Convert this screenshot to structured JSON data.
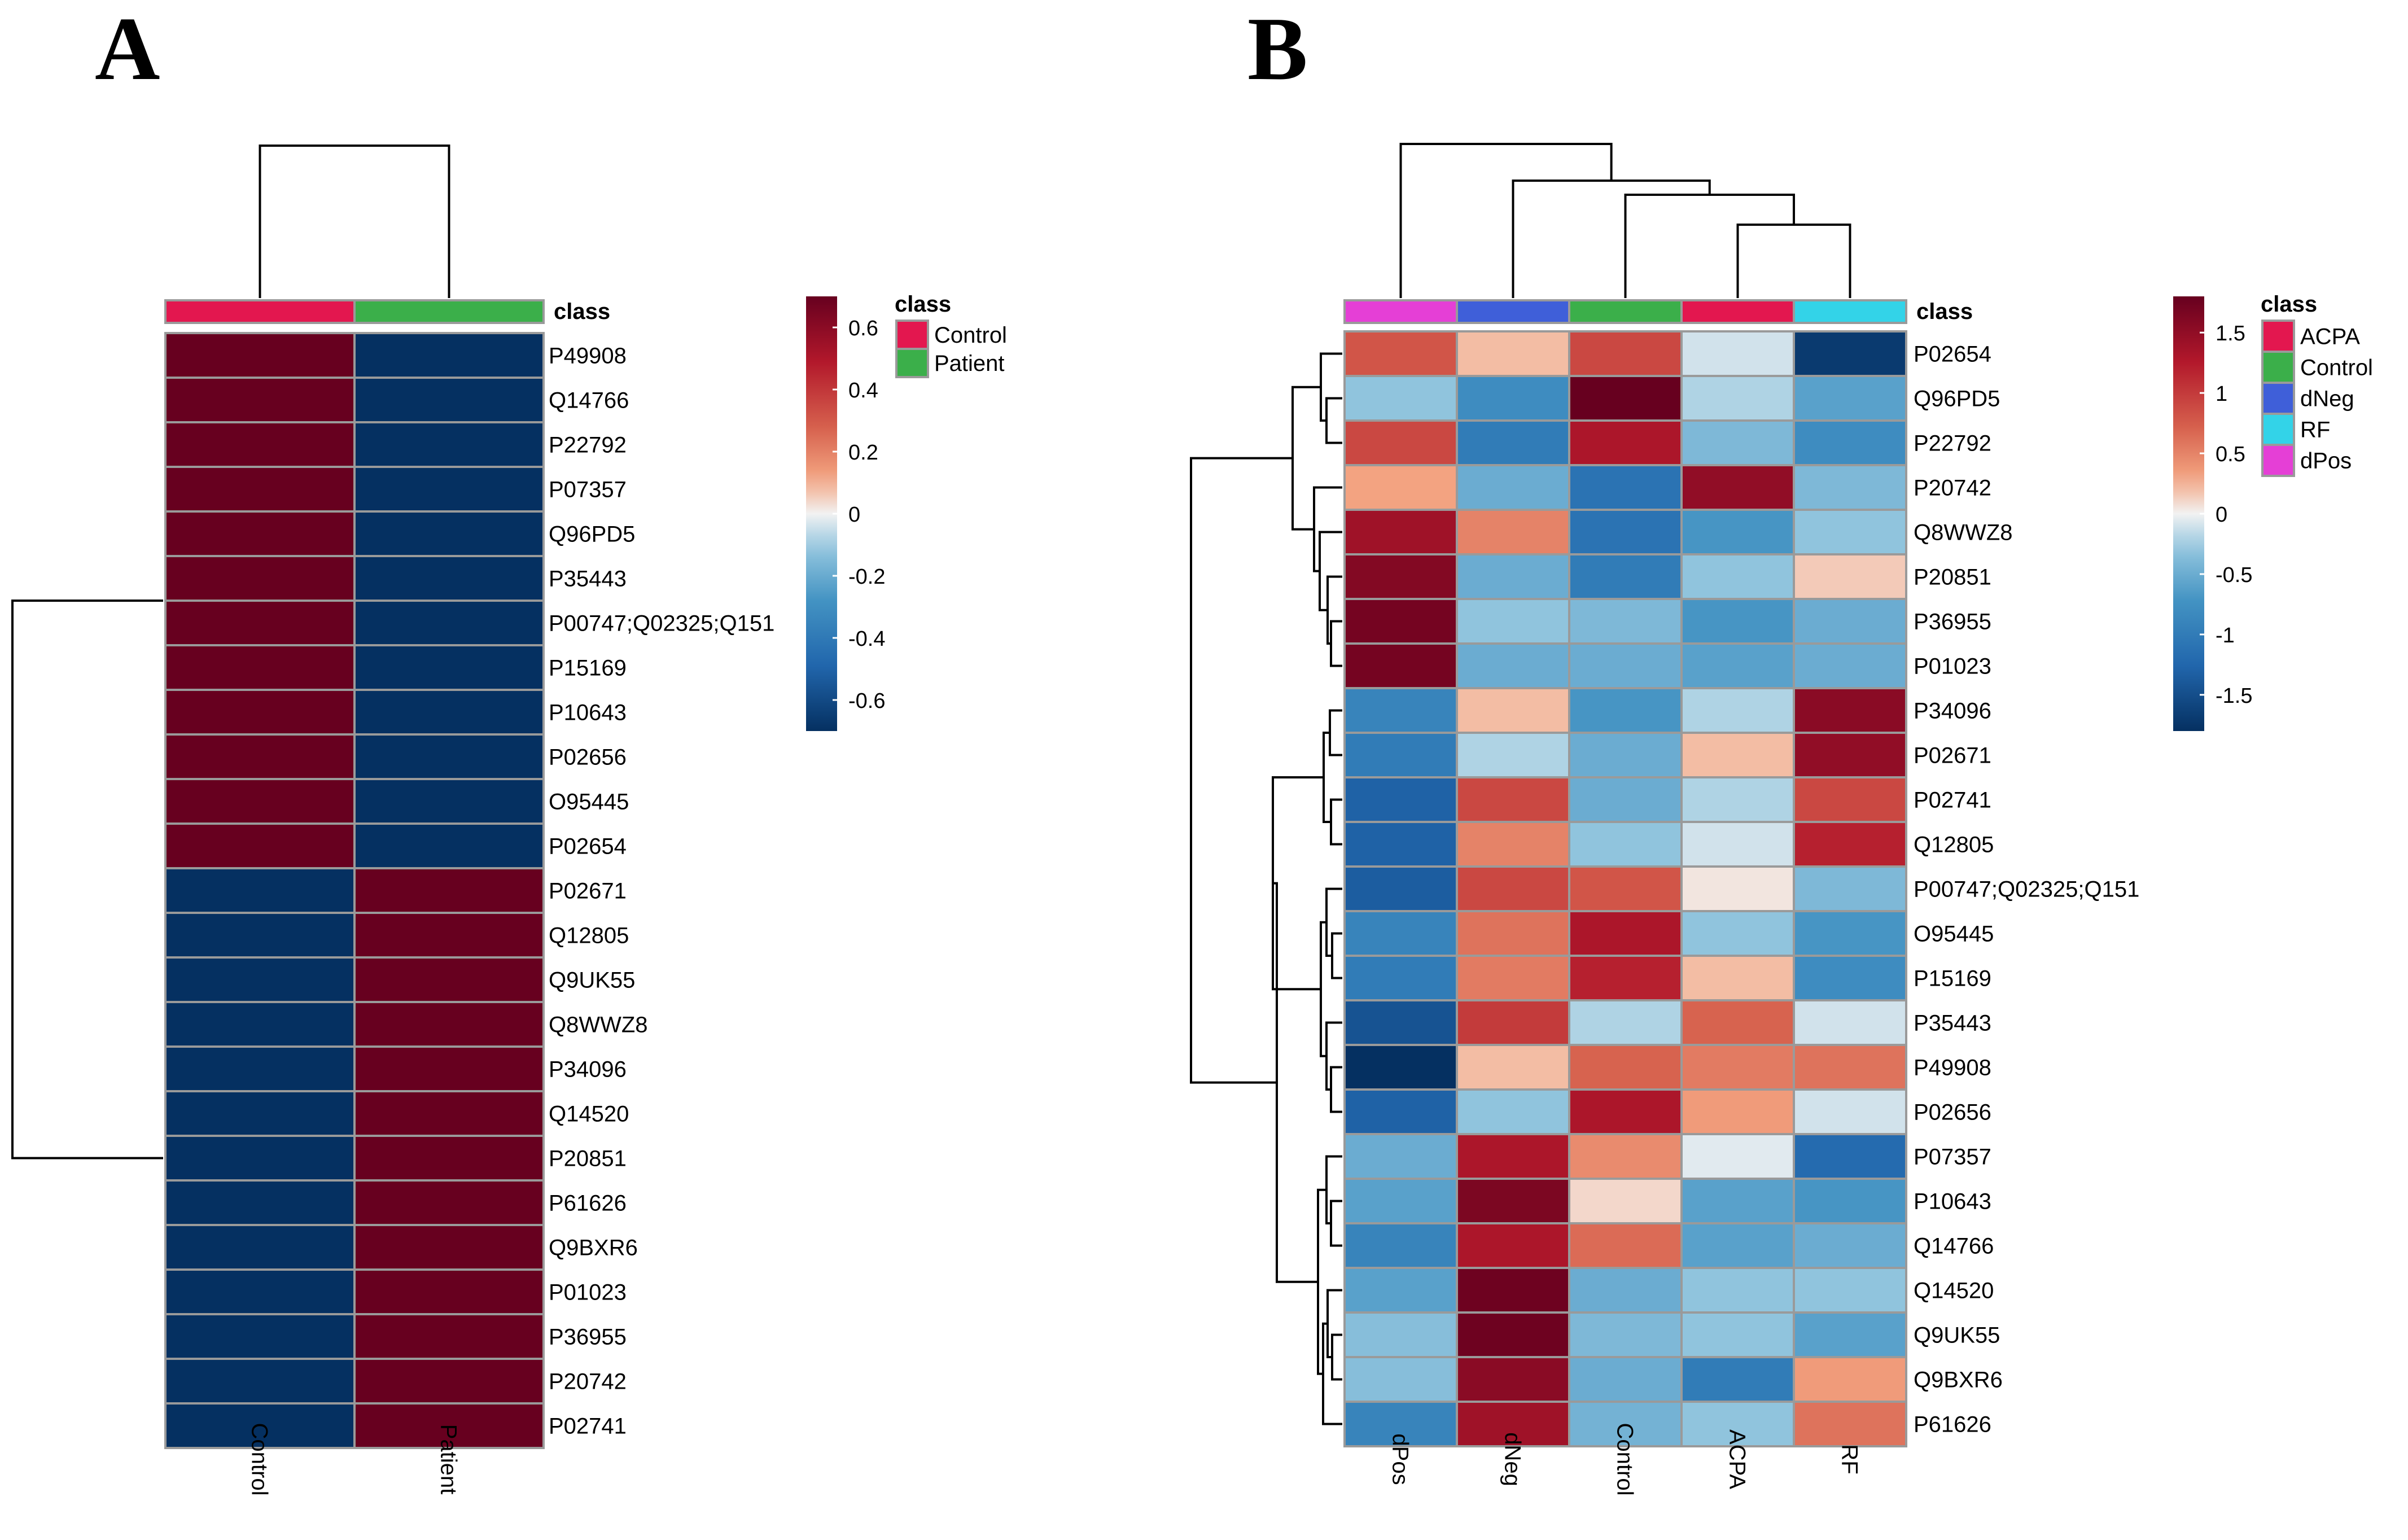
{
  "chart_data": [
    {
      "type": "heatmap",
      "panel_label": "A",
      "columns": [
        "Control",
        "Patient"
      ],
      "rows": [
        "P49908",
        "Q14766",
        "P22792",
        "P07357",
        "Q96PD5",
        "P35443",
        "P00747;Q02325;Q151",
        "P15169",
        "P10643",
        "P02656",
        "O95445",
        "P02654",
        "P02671",
        "Q12805",
        "Q9UK55",
        "Q8WWZ8",
        "P34096",
        "Q14520",
        "P20851",
        "P61626",
        "Q9BXR6",
        "P01023",
        "P36955",
        "P20742",
        "P02741"
      ],
      "values": [
        [
          0.7,
          -0.7
        ],
        [
          0.7,
          -0.7
        ],
        [
          0.7,
          -0.7
        ],
        [
          0.7,
          -0.7
        ],
        [
          0.7,
          -0.7
        ],
        [
          0.7,
          -0.7
        ],
        [
          0.7,
          -0.7
        ],
        [
          0.7,
          -0.7
        ],
        [
          0.7,
          -0.7
        ],
        [
          0.7,
          -0.7
        ],
        [
          0.7,
          -0.7
        ],
        [
          0.7,
          -0.7
        ],
        [
          -0.7,
          0.7
        ],
        [
          -0.7,
          0.7
        ],
        [
          -0.7,
          0.7
        ],
        [
          -0.7,
          0.7
        ],
        [
          -0.7,
          0.7
        ],
        [
          -0.7,
          0.7
        ],
        [
          -0.7,
          0.7
        ],
        [
          -0.7,
          0.7
        ],
        [
          -0.7,
          0.7
        ],
        [
          -0.7,
          0.7
        ],
        [
          -0.7,
          0.7
        ],
        [
          -0.7,
          0.7
        ],
        [
          -0.7,
          0.7
        ]
      ],
      "annotation_title": "class",
      "column_class": [
        "Control",
        "Patient"
      ],
      "class_colors": {
        "Control": "#E3174F",
        "Patient": "#3BAF4A"
      },
      "legend_classes": [
        "Control",
        "Patient"
      ],
      "colorbar_range": [
        -0.7,
        0.7
      ],
      "colorbar_ticks": [
        0.6,
        0.4,
        0.2,
        0,
        -0.2,
        -0.4,
        -0.6
      ],
      "colorbar_tick_labels": [
        "0.6",
        "0.4",
        "0.2",
        "0",
        "-0.2",
        "-0.4",
        "-0.6"
      ]
    },
    {
      "type": "heatmap",
      "panel_label": "B",
      "columns": [
        "dPos",
        "dNeg",
        "Control",
        "ACPA",
        "RF"
      ],
      "rows": [
        "P02654",
        "Q96PD5",
        "P22792",
        "P20742",
        "Q8WWZ8",
        "P20851",
        "P36955",
        "P01023",
        "P34096",
        "P02671",
        "P02741",
        "Q12805",
        "P00747;Q02325;Q151",
        "O95445",
        "P15169",
        "P35443",
        "P49908",
        "P02656",
        "P07357",
        "P10643",
        "Q14766",
        "Q14520",
        "Q9UK55",
        "Q9BXR6",
        "P61626"
      ],
      "values": [
        [
          0.8,
          0.2,
          0.9,
          -0.1,
          -1.7
        ],
        [
          -0.3,
          -0.8,
          1.8,
          -0.2,
          -0.6
        ],
        [
          0.9,
          -1.0,
          1.3,
          -0.4,
          -0.8
        ],
        [
          0.3,
          -0.5,
          -1.1,
          1.5,
          -0.4
        ],
        [
          1.4,
          0.5,
          -1.1,
          -0.7,
          -0.3
        ],
        [
          1.6,
          -0.5,
          -1.0,
          -0.3,
          0.15
        ],
        [
          1.7,
          -0.3,
          -0.4,
          -0.7,
          -0.5
        ],
        [
          1.7,
          -0.5,
          -0.5,
          -0.6,
          -0.5
        ],
        [
          -0.9,
          0.2,
          -0.7,
          -0.2,
          1.55
        ],
        [
          -1.0,
          -0.2,
          -0.5,
          0.2,
          1.5
        ],
        [
          -1.3,
          0.9,
          -0.5,
          -0.2,
          0.9
        ],
        [
          -1.3,
          0.5,
          -0.3,
          -0.1,
          1.2
        ],
        [
          -1.35,
          0.9,
          0.8,
          0.05,
          -0.4
        ],
        [
          -0.9,
          0.6,
          1.3,
          -0.3,
          -0.7
        ],
        [
          -1.0,
          0.55,
          1.2,
          0.2,
          -0.8
        ],
        [
          -1.45,
          1.0,
          -0.2,
          0.7,
          -0.1
        ],
        [
          -1.8,
          0.2,
          0.7,
          0.55,
          0.6
        ],
        [
          -1.3,
          -0.3,
          1.3,
          0.35,
          -0.1
        ],
        [
          -0.5,
          1.3,
          0.45,
          -0.05,
          -1.2
        ],
        [
          -0.6,
          1.65,
          0.1,
          -0.6,
          -0.7
        ],
        [
          -0.9,
          1.3,
          0.65,
          -0.6,
          -0.5
        ],
        [
          -0.6,
          1.75,
          -0.5,
          -0.3,
          -0.3
        ],
        [
          -0.35,
          1.75,
          -0.4,
          -0.3,
          -0.6
        ],
        [
          -0.35,
          1.55,
          -0.5,
          -1.0,
          0.35
        ],
        [
          -0.9,
          1.4,
          -0.45,
          -0.3,
          0.6
        ]
      ],
      "annotation_title": "class",
      "column_class": [
        "dPos",
        "dNeg",
        "Control",
        "ACPA",
        "RF"
      ],
      "class_colors": {
        "ACPA": "#E3174F",
        "Control": "#3BAF4A",
        "dNeg": "#3F5FD9",
        "RF": "#33D3E8",
        "dPos": "#E53FD6"
      },
      "legend_classes": [
        "ACPA",
        "Control",
        "dNeg",
        "RF",
        "dPos"
      ],
      "colorbar_range": [
        -1.8,
        1.8
      ],
      "colorbar_ticks": [
        1.5,
        1,
        0.5,
        0,
        -0.5,
        -1,
        -1.5
      ],
      "colorbar_tick_labels": [
        "1.5",
        "1",
        "0.5",
        "0",
        "-0.5",
        "-1",
        "-1.5"
      ]
    }
  ]
}
